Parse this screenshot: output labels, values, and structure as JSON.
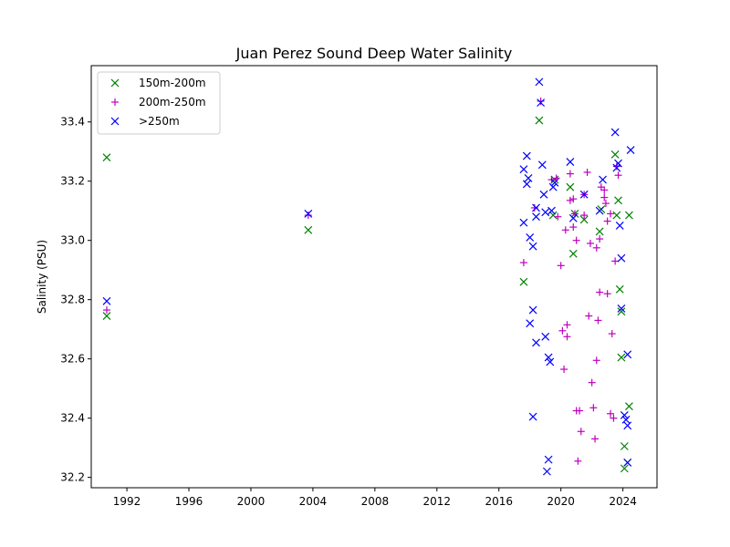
{
  "chart_data": {
    "type": "scatter",
    "title": "Juan Perez Sound Deep Water Salinity",
    "xlabel": "",
    "ylabel": "Salinity (PSU)",
    "xlim": [
      1989.7,
      2026.2
    ],
    "ylim": [
      32.165,
      33.59
    ],
    "xticks": [
      1992,
      1996,
      2000,
      2004,
      2008,
      2012,
      2016,
      2020,
      2024
    ],
    "yticks": [
      32.2,
      32.4,
      32.6,
      32.8,
      33.0,
      33.2,
      33.4
    ],
    "grid": false,
    "legend_position": "top-left",
    "series": [
      {
        "name": "150m-200m",
        "color": "#008000",
        "marker": "x",
        "points": [
          [
            1990.7,
            33.28
          ],
          [
            1990.7,
            32.745
          ],
          [
            2003.7,
            33.035
          ],
          [
            2017.6,
            32.86
          ],
          [
            2018.6,
            33.405
          ],
          [
            2019.5,
            33.085
          ],
          [
            2019.6,
            33.205
          ],
          [
            2020.6,
            33.18
          ],
          [
            2020.8,
            32.955
          ],
          [
            2020.9,
            33.09
          ],
          [
            2021.5,
            33.07
          ],
          [
            2022.5,
            33.03
          ],
          [
            2022.6,
            33.105
          ],
          [
            2023.5,
            33.29
          ],
          [
            2023.6,
            33.085
          ],
          [
            2023.7,
            33.135
          ],
          [
            2023.8,
            32.835
          ],
          [
            2023.9,
            32.76
          ],
          [
            2023.9,
            32.605
          ],
          [
            2024.1,
            32.305
          ],
          [
            2024.1,
            32.23
          ],
          [
            2024.3,
            32.25
          ],
          [
            2024.4,
            32.44
          ],
          [
            2024.4,
            33.085
          ]
        ]
      },
      {
        "name": "200m-250m",
        "color": "#bf00bf",
        "marker": "+",
        "points": [
          [
            1990.7,
            32.765
          ],
          [
            2003.7,
            33.085
          ],
          [
            2017.6,
            32.925
          ],
          [
            2018.3,
            33.11
          ],
          [
            2018.7,
            33.47
          ],
          [
            2019.4,
            33.205
          ],
          [
            2019.7,
            33.21
          ],
          [
            2019.8,
            33.08
          ],
          [
            2020.0,
            32.915
          ],
          [
            2020.1,
            32.695
          ],
          [
            2020.2,
            32.565
          ],
          [
            2020.3,
            33.035
          ],
          [
            2020.4,
            32.675
          ],
          [
            2020.4,
            32.715
          ],
          [
            2020.6,
            33.135
          ],
          [
            2020.6,
            33.225
          ],
          [
            2020.8,
            33.14
          ],
          [
            2020.8,
            33.045
          ],
          [
            2020.9,
            33.09
          ],
          [
            2021.0,
            33.0
          ],
          [
            2021.0,
            32.425
          ],
          [
            2021.1,
            32.255
          ],
          [
            2021.2,
            32.425
          ],
          [
            2021.3,
            32.355
          ],
          [
            2021.5,
            33.085
          ],
          [
            2021.5,
            33.155
          ],
          [
            2021.7,
            33.23
          ],
          [
            2021.8,
            32.745
          ],
          [
            2021.9,
            32.99
          ],
          [
            2022.0,
            32.52
          ],
          [
            2022.1,
            32.435
          ],
          [
            2022.2,
            32.33
          ],
          [
            2022.3,
            32.595
          ],
          [
            2022.3,
            32.975
          ],
          [
            2022.4,
            32.73
          ],
          [
            2022.5,
            32.825
          ],
          [
            2022.5,
            33.005
          ],
          [
            2022.6,
            33.18
          ],
          [
            2022.8,
            33.17
          ],
          [
            2022.8,
            33.145
          ],
          [
            2022.9,
            33.125
          ],
          [
            2023.0,
            33.065
          ],
          [
            2023.0,
            32.82
          ],
          [
            2023.2,
            33.09
          ],
          [
            2023.2,
            32.415
          ],
          [
            2023.3,
            32.685
          ],
          [
            2023.4,
            32.4
          ],
          [
            2023.5,
            32.93
          ],
          [
            2023.6,
            33.25
          ],
          [
            2023.7,
            33.22
          ]
        ]
      },
      {
        "name": ">250m",
        "color": "#0000ff",
        "marker": "x",
        "points": [
          [
            1990.7,
            32.795
          ],
          [
            2003.7,
            33.09
          ],
          [
            2017.6,
            33.24
          ],
          [
            2017.6,
            33.06
          ],
          [
            2017.8,
            33.285
          ],
          [
            2017.8,
            33.19
          ],
          [
            2017.9,
            33.21
          ],
          [
            2018.0,
            33.01
          ],
          [
            2018.0,
            32.72
          ],
          [
            2018.2,
            32.98
          ],
          [
            2018.2,
            32.765
          ],
          [
            2018.2,
            32.405
          ],
          [
            2018.4,
            32.655
          ],
          [
            2018.4,
            33.11
          ],
          [
            2018.4,
            33.08
          ],
          [
            2018.6,
            33.535
          ],
          [
            2018.7,
            33.465
          ],
          [
            2018.8,
            33.255
          ],
          [
            2018.9,
            33.155
          ],
          [
            2019.0,
            32.675
          ],
          [
            2019.0,
            33.095
          ],
          [
            2019.1,
            32.22
          ],
          [
            2019.2,
            32.26
          ],
          [
            2019.2,
            32.605
          ],
          [
            2019.3,
            32.59
          ],
          [
            2019.4,
            33.1
          ],
          [
            2019.5,
            33.18
          ],
          [
            2019.6,
            33.195
          ],
          [
            2020.6,
            33.265
          ],
          [
            2020.8,
            33.075
          ],
          [
            2021.5,
            33.155
          ],
          [
            2022.5,
            33.1
          ],
          [
            2022.7,
            33.205
          ],
          [
            2023.5,
            33.365
          ],
          [
            2023.6,
            33.245
          ],
          [
            2023.7,
            33.26
          ],
          [
            2023.8,
            33.05
          ],
          [
            2023.9,
            32.94
          ],
          [
            2023.9,
            32.77
          ],
          [
            2024.1,
            32.41
          ],
          [
            2024.2,
            32.395
          ],
          [
            2024.3,
            32.375
          ],
          [
            2024.3,
            32.25
          ],
          [
            2024.3,
            32.615
          ],
          [
            2024.5,
            33.305
          ]
        ]
      }
    ]
  }
}
